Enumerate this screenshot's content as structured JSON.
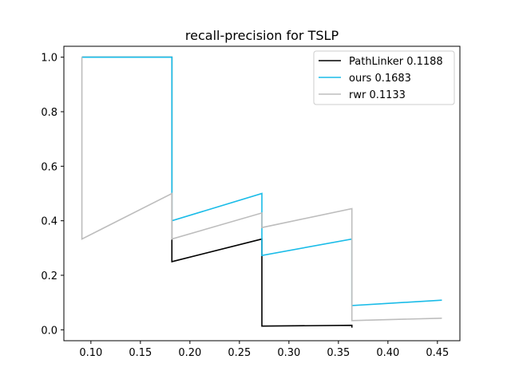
{
  "chart_data": {
    "type": "line",
    "title": "recall-precision for TSLP",
    "xlabel": "",
    "ylabel": "",
    "xlim": [
      0.0727,
      0.4727
    ],
    "ylim": [
      -0.04,
      1.04
    ],
    "xticks": [
      0.1,
      0.15,
      0.2,
      0.25,
      0.3,
      0.35,
      0.4,
      0.45
    ],
    "xtick_labels": [
      "0.10",
      "0.15",
      "0.20",
      "0.25",
      "0.30",
      "0.35",
      "0.40",
      "0.45"
    ],
    "yticks": [
      0.0,
      0.2,
      0.4,
      0.6,
      0.8,
      1.0
    ],
    "ytick_labels": [
      "0.0",
      "0.2",
      "0.4",
      "0.6",
      "0.8",
      "1.0"
    ],
    "grid": false,
    "legend_position": "top-right",
    "series": [
      {
        "name": "PathLinker 0.1188",
        "color": "#000000",
        "x": [
          0.0909,
          0.1818,
          0.1818,
          0.1818,
          0.2727,
          0.2727,
          0.2727,
          0.3636,
          0.3636
        ],
        "y": [
          1.0,
          1.0,
          0.5,
          0.25,
          0.333,
          0.333,
          0.0135,
          0.0165,
          0.0081
        ]
      },
      {
        "name": "ours 0.1683",
        "color": "#1ABCE8",
        "x": [
          0.0909,
          0.1818,
          0.1818,
          0.2727,
          0.2727,
          0.3636,
          0.3636,
          0.4545
        ],
        "y": [
          1.0,
          1.0,
          0.4,
          0.5,
          0.2727,
          0.333,
          0.0889,
          0.1087
        ]
      },
      {
        "name": "rwr 0.1133",
        "color": "#BDBDBD",
        "x": [
          0.0909,
          0.0909,
          0.1818,
          0.1818,
          0.2727,
          0.2727,
          0.3636,
          0.3636,
          0.4545
        ],
        "y": [
          1.0,
          0.333,
          0.5,
          0.333,
          0.4286,
          0.375,
          0.4444,
          0.0339,
          0.0425
        ]
      }
    ]
  }
}
